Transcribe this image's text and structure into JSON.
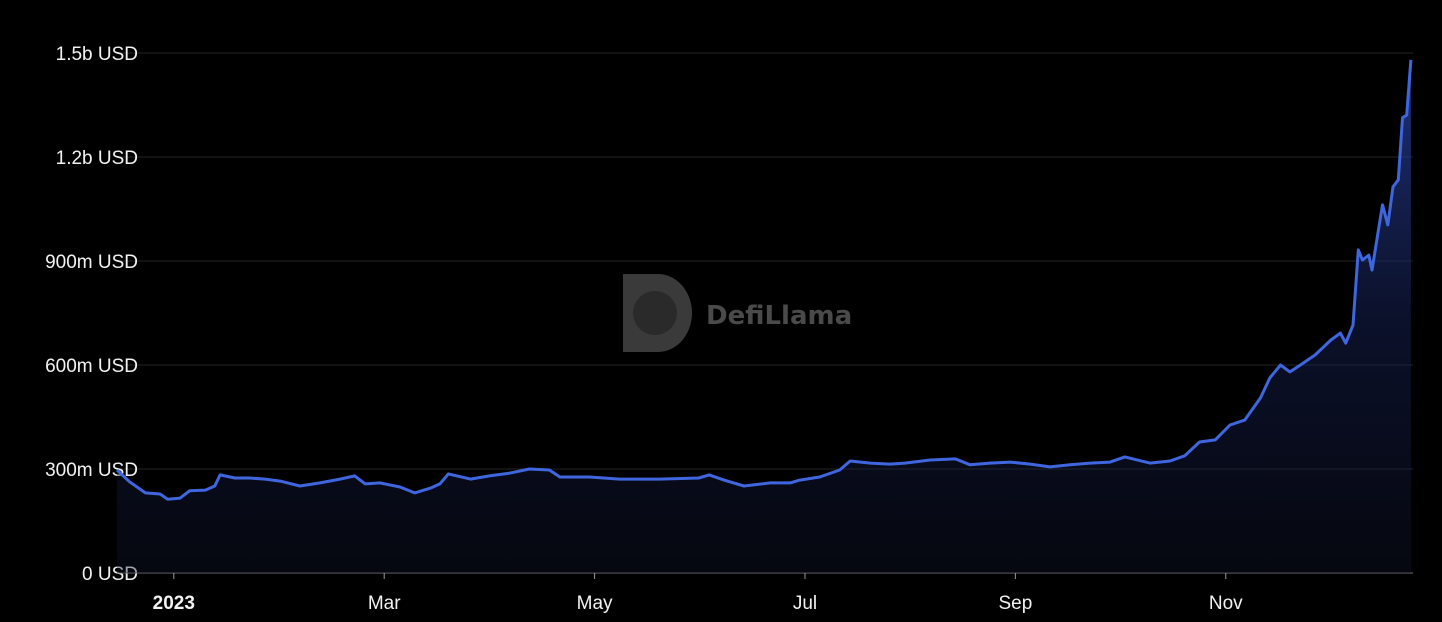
{
  "chart_data": {
    "type": "area",
    "watermark": "DefiLlama",
    "color": "#3f66de",
    "grid": true,
    "xlim": [
      -0.54,
      11.78
    ],
    "xticks": [
      {
        "value": 0,
        "label": "2023"
      },
      {
        "value": 2,
        "label": "Mar"
      },
      {
        "value": 4,
        "label": "May"
      },
      {
        "value": 6,
        "label": "Jul"
      },
      {
        "value": 8,
        "label": "Sep"
      },
      {
        "value": 10,
        "label": "Nov"
      }
    ],
    "ylim": [
      0,
      1500000000
    ],
    "yticks": [
      {
        "value": 0,
        "label": "0 USD"
      },
      {
        "value": 300000000,
        "label": "300m USD"
      },
      {
        "value": 600000000,
        "label": "600m USD"
      },
      {
        "value": 900000000,
        "label": "900m USD"
      },
      {
        "value": 1200000000,
        "label": "1.2b USD"
      },
      {
        "value": 1500000000,
        "label": "1.5b USD"
      }
    ],
    "x": [
      -0.54,
      -0.42,
      -0.27,
      -0.13,
      -0.06,
      0.06,
      0.15,
      0.3,
      0.39,
      0.44,
      0.58,
      0.72,
      0.87,
      1.01,
      1.2,
      1.39,
      1.58,
      1.72,
      1.82,
      1.96,
      2.15,
      2.29,
      2.44,
      2.53,
      2.61,
      2.82,
      3.0,
      3.19,
      3.38,
      3.57,
      3.67,
      3.95,
      4.24,
      4.62,
      4.99,
      5.09,
      5.23,
      5.42,
      5.67,
      5.86,
      5.95,
      6.14,
      6.33,
      6.43,
      6.62,
      6.81,
      6.95,
      7.19,
      7.43,
      7.57,
      7.76,
      7.95,
      8.14,
      8.33,
      8.52,
      8.71,
      8.9,
      9.04,
      9.28,
      9.47,
      9.61,
      9.75,
      9.9,
      10.04,
      10.18,
      10.33,
      10.42,
      10.52,
      10.61,
      10.71,
      10.85,
      11.0,
      11.09,
      11.14,
      11.21,
      11.26,
      11.3,
      11.36,
      11.39,
      11.49,
      11.54,
      11.59,
      11.64,
      11.68,
      11.72,
      11.76
    ],
    "values": [
      297000000,
      263000000,
      231000000,
      228000000,
      213000000,
      216000000,
      237000000,
      239000000,
      251000000,
      283000000,
      274000000,
      274000000,
      271000000,
      265000000,
      251000000,
      260000000,
      271000000,
      280000000,
      257000000,
      260000000,
      248000000,
      231000000,
      245000000,
      257000000,
      286000000,
      271000000,
      280000000,
      288000000,
      300000000,
      297000000,
      277000000,
      277000000,
      271000000,
      271000000,
      274000000,
      283000000,
      268000000,
      251000000,
      260000000,
      260000000,
      268000000,
      277000000,
      297000000,
      323000000,
      317000000,
      314000000,
      317000000,
      326000000,
      329000000,
      312000000,
      317000000,
      320000000,
      314000000,
      306000000,
      312000000,
      317000000,
      320000000,
      335000000,
      317000000,
      323000000,
      338000000,
      378000000,
      384000000,
      427000000,
      441000000,
      505000000,
      563000000,
      600000000,
      580000000,
      600000000,
      629000000,
      672000000,
      692000000,
      663000000,
      715000000,
      932000000,
      903000000,
      917000000,
      874000000,
      1062000000,
      1004000000,
      1114000000,
      1134000000,
      1313000000,
      1321000000,
      1480000000
    ]
  }
}
